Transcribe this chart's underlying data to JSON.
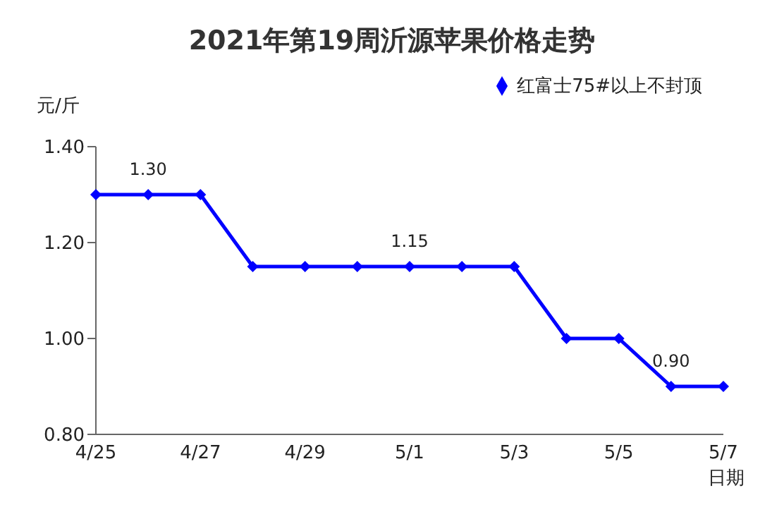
{
  "chart_data": {
    "type": "line",
    "title": "2021年第19周沂源苹果价格走势",
    "xlabel": "日期",
    "ylabel": "元/斤",
    "categories": [
      "4/25",
      null,
      "4/27",
      null,
      "4/29",
      null,
      "5/1",
      null,
      "5/3",
      null,
      "5/5",
      null,
      "5/7"
    ],
    "series": [
      {
        "name": "红富士75#以上不封顶",
        "color": "#0000ff",
        "values": [
          1.3,
          1.3,
          1.3,
          1.15,
          1.15,
          1.15,
          1.15,
          1.15,
          1.15,
          1.0,
          1.0,
          0.9,
          0.9
        ],
        "value_labels": [
          null,
          "1.30",
          null,
          null,
          null,
          null,
          "1.15",
          null,
          null,
          null,
          null,
          "0.90",
          null
        ]
      }
    ],
    "ylim": [
      0.8,
      1.4
    ],
    "yticks": [
      {
        "value": 0.8,
        "label": "0.80"
      },
      {
        "value": 1.0,
        "label": "1.00"
      },
      {
        "value": 1.2,
        "label": "1.20"
      },
      {
        "value": 1.4,
        "label": "1.40"
      }
    ],
    "grid": false,
    "legend": "top right",
    "marker": "diamond",
    "line_style": "solid"
  }
}
